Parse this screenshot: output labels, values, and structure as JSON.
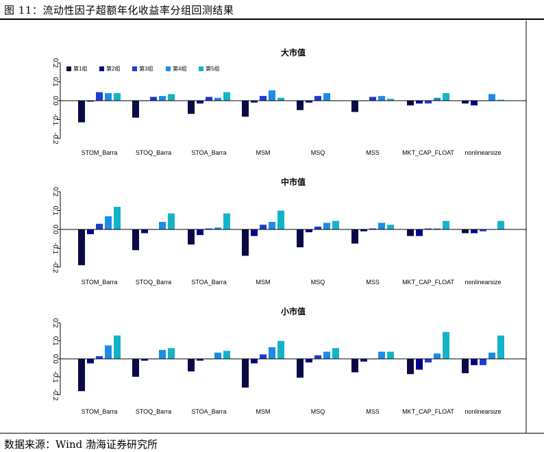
{
  "figure": {
    "title": "图 11：流动性因子超额年化收益率分组回测结果",
    "source": "数据来源：Wind  渤海证券研究所"
  },
  "colors": {
    "g1": "#0a0a46",
    "g2": "#00008c",
    "g3": "#1e3ccd",
    "g4": "#1e8ce6",
    "g5": "#14b4c8"
  },
  "chart_data": [
    {
      "type": "bar",
      "title": "大市值",
      "categories": [
        "STOM_Barra",
        "STOQ_Barra",
        "STOA_Barra",
        "MSM",
        "MSQ",
        "MSS",
        "MKT_CAP_FLOAT",
        "nonlinearsize"
      ],
      "series": [
        {
          "name": "第1组",
          "values": [
            -0.115,
            -0.09,
            -0.07,
            -0.085,
            -0.05,
            -0.06,
            -0.025,
            -0.015
          ]
        },
        {
          "name": "第2组",
          "values": [
            -0.005,
            0.0,
            -0.015,
            -0.01,
            -0.01,
            0.0,
            -0.015,
            -0.025
          ]
        },
        {
          "name": "第3组",
          "values": [
            0.045,
            0.02,
            0.02,
            0.025,
            0.025,
            0.02,
            -0.015,
            0.0
          ]
        },
        {
          "name": "第4组",
          "values": [
            0.04,
            0.025,
            0.015,
            0.055,
            0.04,
            0.025,
            0.015,
            0.035
          ]
        },
        {
          "name": "第5组",
          "values": [
            0.04,
            0.035,
            0.045,
            0.015,
            0.0,
            0.01,
            0.04,
            0.005
          ]
        }
      ],
      "yticks": [
        "-0.2",
        "-0.1",
        "0.0",
        "0.1",
        "0.2"
      ],
      "ylim": [
        -0.2,
        0.2
      ],
      "legend": "top-left"
    },
    {
      "type": "bar",
      "title": "中市值",
      "categories": [
        "STOM_Barra",
        "STOQ_Barra",
        "STOA_Barra",
        "MSM",
        "MSQ",
        "MSS",
        "MKT_CAP_FLOAT",
        "nonlinearsize"
      ],
      "series": [
        {
          "name": "第1组",
          "values": [
            -0.19,
            -0.11,
            -0.08,
            -0.14,
            -0.095,
            -0.075,
            -0.035,
            -0.02
          ]
        },
        {
          "name": "第2组",
          "values": [
            -0.025,
            -0.02,
            -0.03,
            -0.035,
            -0.015,
            -0.01,
            -0.035,
            -0.02
          ]
        },
        {
          "name": "第3组",
          "values": [
            0.03,
            0.0,
            0.005,
            0.025,
            0.015,
            0.005,
            0.005,
            -0.01
          ]
        },
        {
          "name": "第4组",
          "values": [
            0.07,
            0.04,
            0.01,
            0.04,
            0.035,
            0.035,
            0.005,
            0.0
          ]
        },
        {
          "name": "第5组",
          "values": [
            0.12,
            0.085,
            0.085,
            0.1,
            0.045,
            0.025,
            0.045,
            0.045
          ]
        }
      ],
      "yticks": [
        "-0.2",
        "-0.1",
        "0.0",
        "0.1",
        "0.2"
      ],
      "ylim": [
        -0.2,
        0.2
      ]
    },
    {
      "type": "bar",
      "title": "小市值",
      "categories": [
        "STOM_Barra",
        "STOQ_Barra",
        "STOA_Barra",
        "MSM",
        "MSQ",
        "MSS",
        "MKT_CAP_FLOAT",
        "nonlinearsize"
      ],
      "series": [
        {
          "name": "第1组",
          "values": [
            -0.18,
            -0.1,
            -0.07,
            -0.16,
            -0.105,
            -0.075,
            -0.085,
            -0.08
          ]
        },
        {
          "name": "第2组",
          "values": [
            -0.025,
            -0.01,
            -0.01,
            -0.025,
            -0.02,
            -0.015,
            -0.06,
            -0.035
          ]
        },
        {
          "name": "第3组",
          "values": [
            0.015,
            0.0,
            0.0,
            0.025,
            0.02,
            0.0,
            -0.02,
            -0.035
          ]
        },
        {
          "name": "第4组",
          "values": [
            0.075,
            0.05,
            0.035,
            0.065,
            0.04,
            0.04,
            0.03,
            0.035
          ]
        },
        {
          "name": "第5组",
          "values": [
            0.13,
            0.06,
            0.045,
            0.1,
            0.06,
            0.04,
            0.15,
            0.13
          ]
        }
      ],
      "yticks": [
        "-0.2",
        "-0.1",
        "0.0",
        "0.1",
        "0.2"
      ],
      "ylim": [
        -0.2,
        0.2
      ]
    }
  ]
}
